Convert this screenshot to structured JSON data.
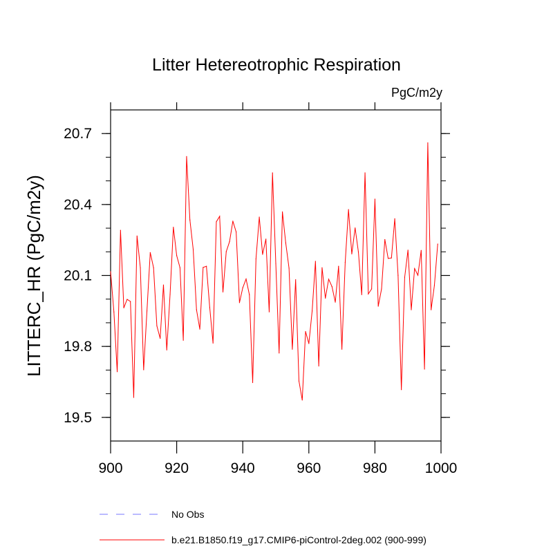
{
  "chart_data": {
    "type": "line",
    "title": "Litter Hetereotrophic Respiration",
    "units_label": "PgC/m2y",
    "xlabel": "",
    "ylabel": "LITTERC_HR  (PgC/m2y)",
    "xlim": [
      900,
      1000
    ],
    "ylim": [
      19.4,
      20.8
    ],
    "xticks": [
      900,
      920,
      940,
      960,
      980,
      1000
    ],
    "yticks": [
      19.5,
      19.8,
      20.1,
      20.4,
      20.7
    ],
    "ytick_labels": [
      "19.5",
      "19.8",
      "20.1",
      "20.4",
      "20.7"
    ],
    "y_minor_step": 0.1,
    "grid": false,
    "legend_placement": "bottom",
    "legend": [
      {
        "name": "No Obs",
        "color": "#7777ff",
        "dash": true
      },
      {
        "name": "b.e21.B1850.f19_g17.CMIP6-piControl-2deg.002 (900-999)",
        "color": "#ff0000",
        "dash": false
      }
    ],
    "series": [
      {
        "name": "b.e21.B1850.f19_g17.CMIP6-piControl-2deg.002 (900-999)",
        "color": "#ff0000",
        "x_start": 900,
        "x_step": 1,
        "values": [
          20.116,
          19.946,
          19.693,
          20.291,
          19.963,
          19.999,
          19.99,
          19.584,
          20.267,
          20.133,
          19.701,
          19.95,
          20.197,
          20.133,
          19.887,
          19.834,
          20.06,
          19.785,
          20.02,
          20.304,
          20.184,
          20.133,
          19.826,
          20.603,
          20.335,
          20.21,
          19.955,
          19.873,
          20.134,
          20.139,
          19.965,
          19.814,
          20.327,
          20.35,
          20.03,
          20.201,
          20.243,
          20.33,
          20.284,
          19.985,
          20.048,
          20.085,
          20.019,
          19.647,
          20.17,
          20.347,
          20.189,
          20.254,
          19.946,
          20.534,
          20.15,
          19.772,
          20.369,
          20.238,
          20.131,
          19.788,
          20.082,
          19.654,
          19.573,
          19.863,
          19.812,
          19.95,
          20.16,
          19.717,
          20.133,
          20.004,
          20.084,
          20.053,
          19.987,
          20.139,
          19.788,
          20.155,
          20.379,
          20.191,
          20.301,
          20.199,
          20.019,
          20.534,
          20.022,
          20.043,
          20.423,
          19.97,
          20.043,
          20.252,
          20.172,
          20.174,
          20.34,
          20.101,
          19.617,
          20.092,
          20.207,
          19.955,
          20.129,
          20.101,
          20.206,
          19.704,
          20.661,
          19.955,
          20.058,
          20.233
        ]
      }
    ]
  }
}
